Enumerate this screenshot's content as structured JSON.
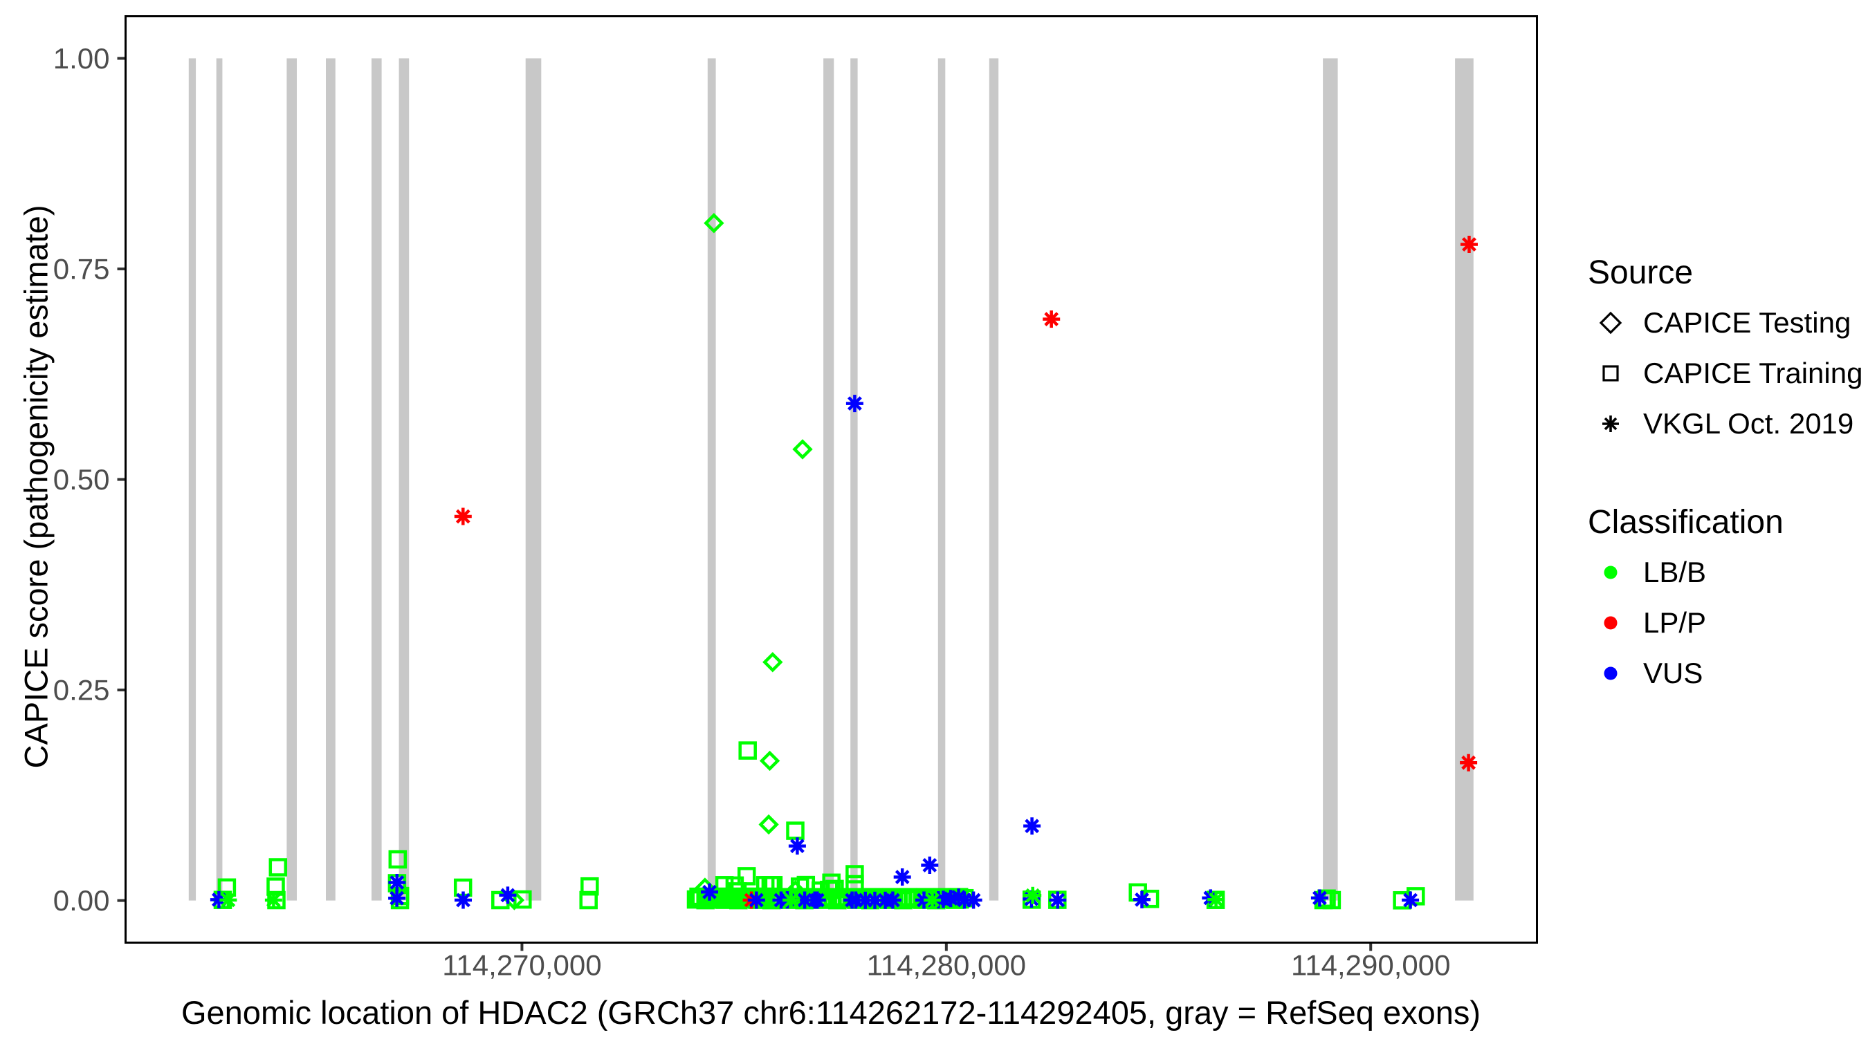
{
  "chart_data": {
    "type": "scatter",
    "title": "",
    "xlabel": "Genomic location of HDAC2 (GRCh37 chr6:114262172-114292405, gray = RefSeq exons)",
    "ylabel": "CAPICE score (pathogenicity estimate)",
    "gene_region": {
      "gene": "HDAC2",
      "assembly": "GRCh37",
      "chromosome": "chr6",
      "start": 114262172,
      "end": 114292405
    },
    "xlim": [
      114260660,
      114293917
    ],
    "ylim": [
      -0.05,
      1.05
    ],
    "grid": false,
    "x_ticks": [
      {
        "value": 114270000,
        "label": "114,270,000"
      },
      {
        "value": 114280000,
        "label": "114,280,000"
      },
      {
        "value": 114290000,
        "label": "114,290,000"
      }
    ],
    "y_ticks": [
      {
        "value": 0.0,
        "label": "0.00"
      },
      {
        "value": 0.25,
        "label": "0.25"
      },
      {
        "value": 0.5,
        "label": "0.50"
      },
      {
        "value": 0.75,
        "label": "0.75"
      },
      {
        "value": 1.0,
        "label": "1.00"
      }
    ],
    "exons_note": "gray vertical bars = RefSeq exons, drawn from score 0 to score 1",
    "exons": [
      [
        114262148,
        114262316
      ],
      [
        114262799,
        114262941
      ],
      [
        114264457,
        114264695
      ],
      [
        114265380,
        114265605
      ],
      [
        114266456,
        114266694
      ],
      [
        114267101,
        114267339
      ],
      [
        114270086,
        114270455
      ],
      [
        114274375,
        114274568
      ],
      [
        114277102,
        114277350
      ],
      [
        114277740,
        114277909
      ],
      [
        114279804,
        114279975
      ],
      [
        114281010,
        114281229
      ],
      [
        114288873,
        114289224
      ],
      [
        114291986,
        114292421
      ]
    ],
    "classification_colors": {
      "LB/B": "#00FF00",
      "LP/P": "#FF0000",
      "VUS": "#0000FF"
    },
    "series": [
      {
        "name": "CAPICE Testing / LB/B",
        "source": "CAPICE Testing",
        "shape": "diamond",
        "classification": "LB/B",
        "points": [
          [
            114274524,
            0.8044
          ],
          [
            114276612,
            0.5358
          ],
          [
            114275908,
            0.283
          ],
          [
            114275839,
            0.1659
          ],
          [
            114275815,
            0.0903
          ],
          [
            114274312,
            0.0152
          ],
          [
            114276443,
            0.0121
          ],
          [
            114269820,
            0.0005
          ]
        ]
      },
      {
        "name": "CAPICE Training / LB/B",
        "source": "CAPICE Training",
        "shape": "square",
        "classification": "LB/B",
        "points": [
          [
            114267072,
            0.0488
          ],
          [
            114264252,
            0.0395
          ],
          [
            114262950,
            0.0007
          ],
          [
            114263046,
            0.0154
          ],
          [
            114264198,
            0.0165
          ],
          [
            114264214,
            0.0005
          ],
          [
            114267127,
            0.0053
          ],
          [
            114267126,
            0.0005
          ],
          [
            114267057,
            0.0206
          ],
          [
            114268611,
            0.0153
          ],
          [
            114269493,
            0.0005
          ],
          [
            114270015,
            0.0012
          ],
          [
            114271596,
            0.0167
          ],
          [
            114271570,
            0.0005
          ],
          [
            114275319,
            0.1781
          ],
          [
            114276441,
            0.0829
          ],
          [
            114275294,
            0.0289
          ],
          [
            114275735,
            0.0183
          ],
          [
            114275860,
            0.0183
          ],
          [
            114275926,
            0.0183
          ],
          [
            114277041,
            0.0117
          ],
          [
            114277235,
            0.0126
          ],
          [
            114277292,
            0.0212
          ],
          [
            114277369,
            0.0137
          ],
          [
            114277841,
            0.0313
          ],
          [
            114277841,
            0.0194
          ],
          [
            114274771,
            0.0183
          ],
          [
            114275013,
            0.0178
          ],
          [
            114275080,
            0.0108
          ],
          [
            114282011,
            0.001
          ],
          [
            114282616,
            0.0008
          ],
          [
            114284513,
            0.0096
          ],
          [
            114284798,
            0.002
          ],
          [
            114286346,
            0.0007
          ],
          [
            114288961,
            0.0023
          ],
          [
            114288887,
            0.0005
          ],
          [
            114289082,
            0.0005
          ],
          [
            114290739,
            0.0002
          ],
          [
            114291060,
            0.0051
          ],
          [
            114276550,
            0.0165
          ],
          [
            114276690,
            0.0185
          ],
          [
            114274102,
            0.0012
          ],
          [
            114274213,
            0.0028
          ],
          [
            114274324,
            0.0004
          ],
          [
            114274435,
            0.0032
          ],
          [
            114274546,
            0.0016
          ],
          [
            114274657,
            0.0022
          ],
          [
            114274768,
            0.0008
          ],
          [
            114274879,
            0.0012
          ],
          [
            114274990,
            0.0028
          ],
          [
            114275101,
            0.0004
          ],
          [
            114275212,
            0.0032
          ],
          [
            114275323,
            0.0016
          ],
          [
            114275434,
            0.0022
          ],
          [
            114275545,
            0.0008
          ],
          [
            114275656,
            0.0012
          ],
          [
            114275767,
            0.0028
          ],
          [
            114275878,
            0.0004
          ],
          [
            114275989,
            0.0032
          ],
          [
            114276100,
            0.0016
          ],
          [
            114276211,
            0.0022
          ],
          [
            114276322,
            0.0008
          ],
          [
            114276433,
            0.0012
          ],
          [
            114276544,
            0.0028
          ],
          [
            114276655,
            0.0004
          ],
          [
            114276766,
            0.0032
          ],
          [
            114276877,
            0.0016
          ],
          [
            114276988,
            0.0022
          ],
          [
            114277099,
            0.0008
          ],
          [
            114277210,
            0.0012
          ],
          [
            114277321,
            0.0028
          ],
          [
            114277432,
            0.0004
          ],
          [
            114277543,
            0.0032
          ],
          [
            114277654,
            0.0016
          ],
          [
            114277765,
            0.0022
          ],
          [
            114277876,
            0.0008
          ],
          [
            114277987,
            0.0012
          ],
          [
            114278098,
            0.0028
          ],
          [
            114278209,
            0.0004
          ],
          [
            114278320,
            0.0032
          ],
          [
            114278431,
            0.0016
          ],
          [
            114278542,
            0.0022
          ],
          [
            114278653,
            0.0008
          ],
          [
            114278764,
            0.0012
          ],
          [
            114278875,
            0.0028
          ],
          [
            114278986,
            0.0004
          ],
          [
            114279097,
            0.0032
          ],
          [
            114279208,
            0.0016
          ],
          [
            114279319,
            0.0022
          ],
          [
            114279430,
            0.0008
          ],
          [
            114279541,
            0.0012
          ],
          [
            114279652,
            0.0028
          ],
          [
            114279763,
            0.0004
          ],
          [
            114279874,
            0.0032
          ],
          [
            114279985,
            0.0016
          ],
          [
            114280096,
            0.0022
          ],
          [
            114280207,
            0.0008
          ],
          [
            114280318,
            0.0012
          ],
          [
            114280429,
            0.0028
          ],
          [
            114274160,
            0.0045
          ],
          [
            114274380,
            0.0045
          ],
          [
            114274600,
            0.0045
          ],
          [
            114274820,
            0.0045
          ],
          [
            114275040,
            0.0045
          ],
          [
            114275260,
            0.0045
          ],
          [
            114275480,
            0.0045
          ],
          [
            114275700,
            0.0045
          ],
          [
            114275920,
            0.0045
          ],
          [
            114276300,
            0.004
          ],
          [
            114276700,
            0.004
          ],
          [
            114277100,
            0.004
          ],
          [
            114277500,
            0.004
          ],
          [
            114277900,
            0.004
          ],
          [
            114278300,
            0.004
          ],
          [
            114278700,
            0.004
          ],
          [
            114279100,
            0.004
          ],
          [
            114279500,
            0.004
          ],
          [
            114279900,
            0.004
          ],
          [
            114280300,
            0.004
          ]
        ]
      },
      {
        "name": "VKGL Oct. 2019 / LP/P",
        "source": "VKGL Oct. 2019",
        "shape": "asterisk",
        "classification": "LP/P",
        "points": [
          [
            114292319,
            0.7791
          ],
          [
            114282476,
            0.6904
          ],
          [
            114268612,
            0.4561
          ],
          [
            114292305,
            0.1637
          ],
          [
            114275408,
            0.0005
          ]
        ]
      },
      {
        "name": "VKGL Oct. 2019 / VUS",
        "source": "VKGL Oct. 2019",
        "shape": "asterisk",
        "classification": "VUS",
        "points": [
          [
            114277841,
            0.5902
          ],
          [
            114282018,
            0.0885
          ],
          [
            114276488,
            0.0648
          ],
          [
            114279608,
            0.0419
          ],
          [
            114278963,
            0.0279
          ],
          [
            114262860,
            0.001
          ],
          [
            114267056,
            0.0214
          ],
          [
            114267052,
            0.0028
          ],
          [
            114268615,
            0.0005
          ],
          [
            114269665,
            0.0063
          ],
          [
            114274420,
            0.0101
          ],
          [
            114275525,
            0.0005
          ],
          [
            114276663,
            0.0005
          ],
          [
            114276899,
            0.0005
          ],
          [
            114276959,
            0.0005
          ],
          [
            114277779,
            0.0005
          ],
          [
            114277866,
            0.0005
          ],
          [
            114278091,
            0.0002
          ],
          [
            114278316,
            0.0002
          ],
          [
            114278562,
            0.0002
          ],
          [
            114279473,
            0.0005
          ],
          [
            114279929,
            0.0014
          ],
          [
            114280104,
            0.0024
          ],
          [
            114280427,
            0.0005
          ],
          [
            114282006,
            0.0018
          ],
          [
            114282625,
            0.0005
          ],
          [
            114284609,
            0.0011
          ],
          [
            114286227,
            0.003
          ],
          [
            114288797,
            0.003
          ],
          [
            114290935,
            0.0005
          ],
          [
            114276107,
            0.0005
          ],
          [
            114276254,
            0.0008
          ],
          [
            114278737,
            0.0005
          ],
          [
            114279813,
            0.0008
          ],
          [
            114280290,
            0.004
          ],
          [
            114280640,
            0.0005
          ]
        ]
      },
      {
        "name": "VKGL Oct. 2019 / LB/B",
        "source": "VKGL Oct. 2019",
        "shape": "asterisk",
        "classification": "LB/B",
        "points": [
          [
            114263079,
            0.0006
          ],
          [
            114264147,
            0.0005
          ],
          [
            114276345,
            0.0005
          ],
          [
            114279670,
            0.0005
          ],
          [
            114282035,
            0.006
          ],
          [
            114286354,
            0.0011
          ]
        ]
      }
    ],
    "legend": {
      "source": {
        "title": "Source",
        "items": [
          {
            "label": "CAPICE Testing",
            "key": "diamond"
          },
          {
            "label": "CAPICE Training",
            "key": "square"
          },
          {
            "label": "VKGL Oct. 2019",
            "key": "asterisk"
          }
        ]
      },
      "classification": {
        "title": "Classification",
        "items": [
          {
            "label": "LB/B",
            "color": "#00FF00"
          },
          {
            "label": "LP/P",
            "color": "#FF0000"
          },
          {
            "label": "VUS",
            "color": "#0000FF"
          }
        ]
      }
    },
    "style": {
      "exon_color": "#C8C8C8",
      "panel_border_color": "#000000",
      "tick_color": "#333333",
      "tick_label_color": "#4D4D4D",
      "text_color": "#000000",
      "background": "#FFFFFF"
    }
  }
}
